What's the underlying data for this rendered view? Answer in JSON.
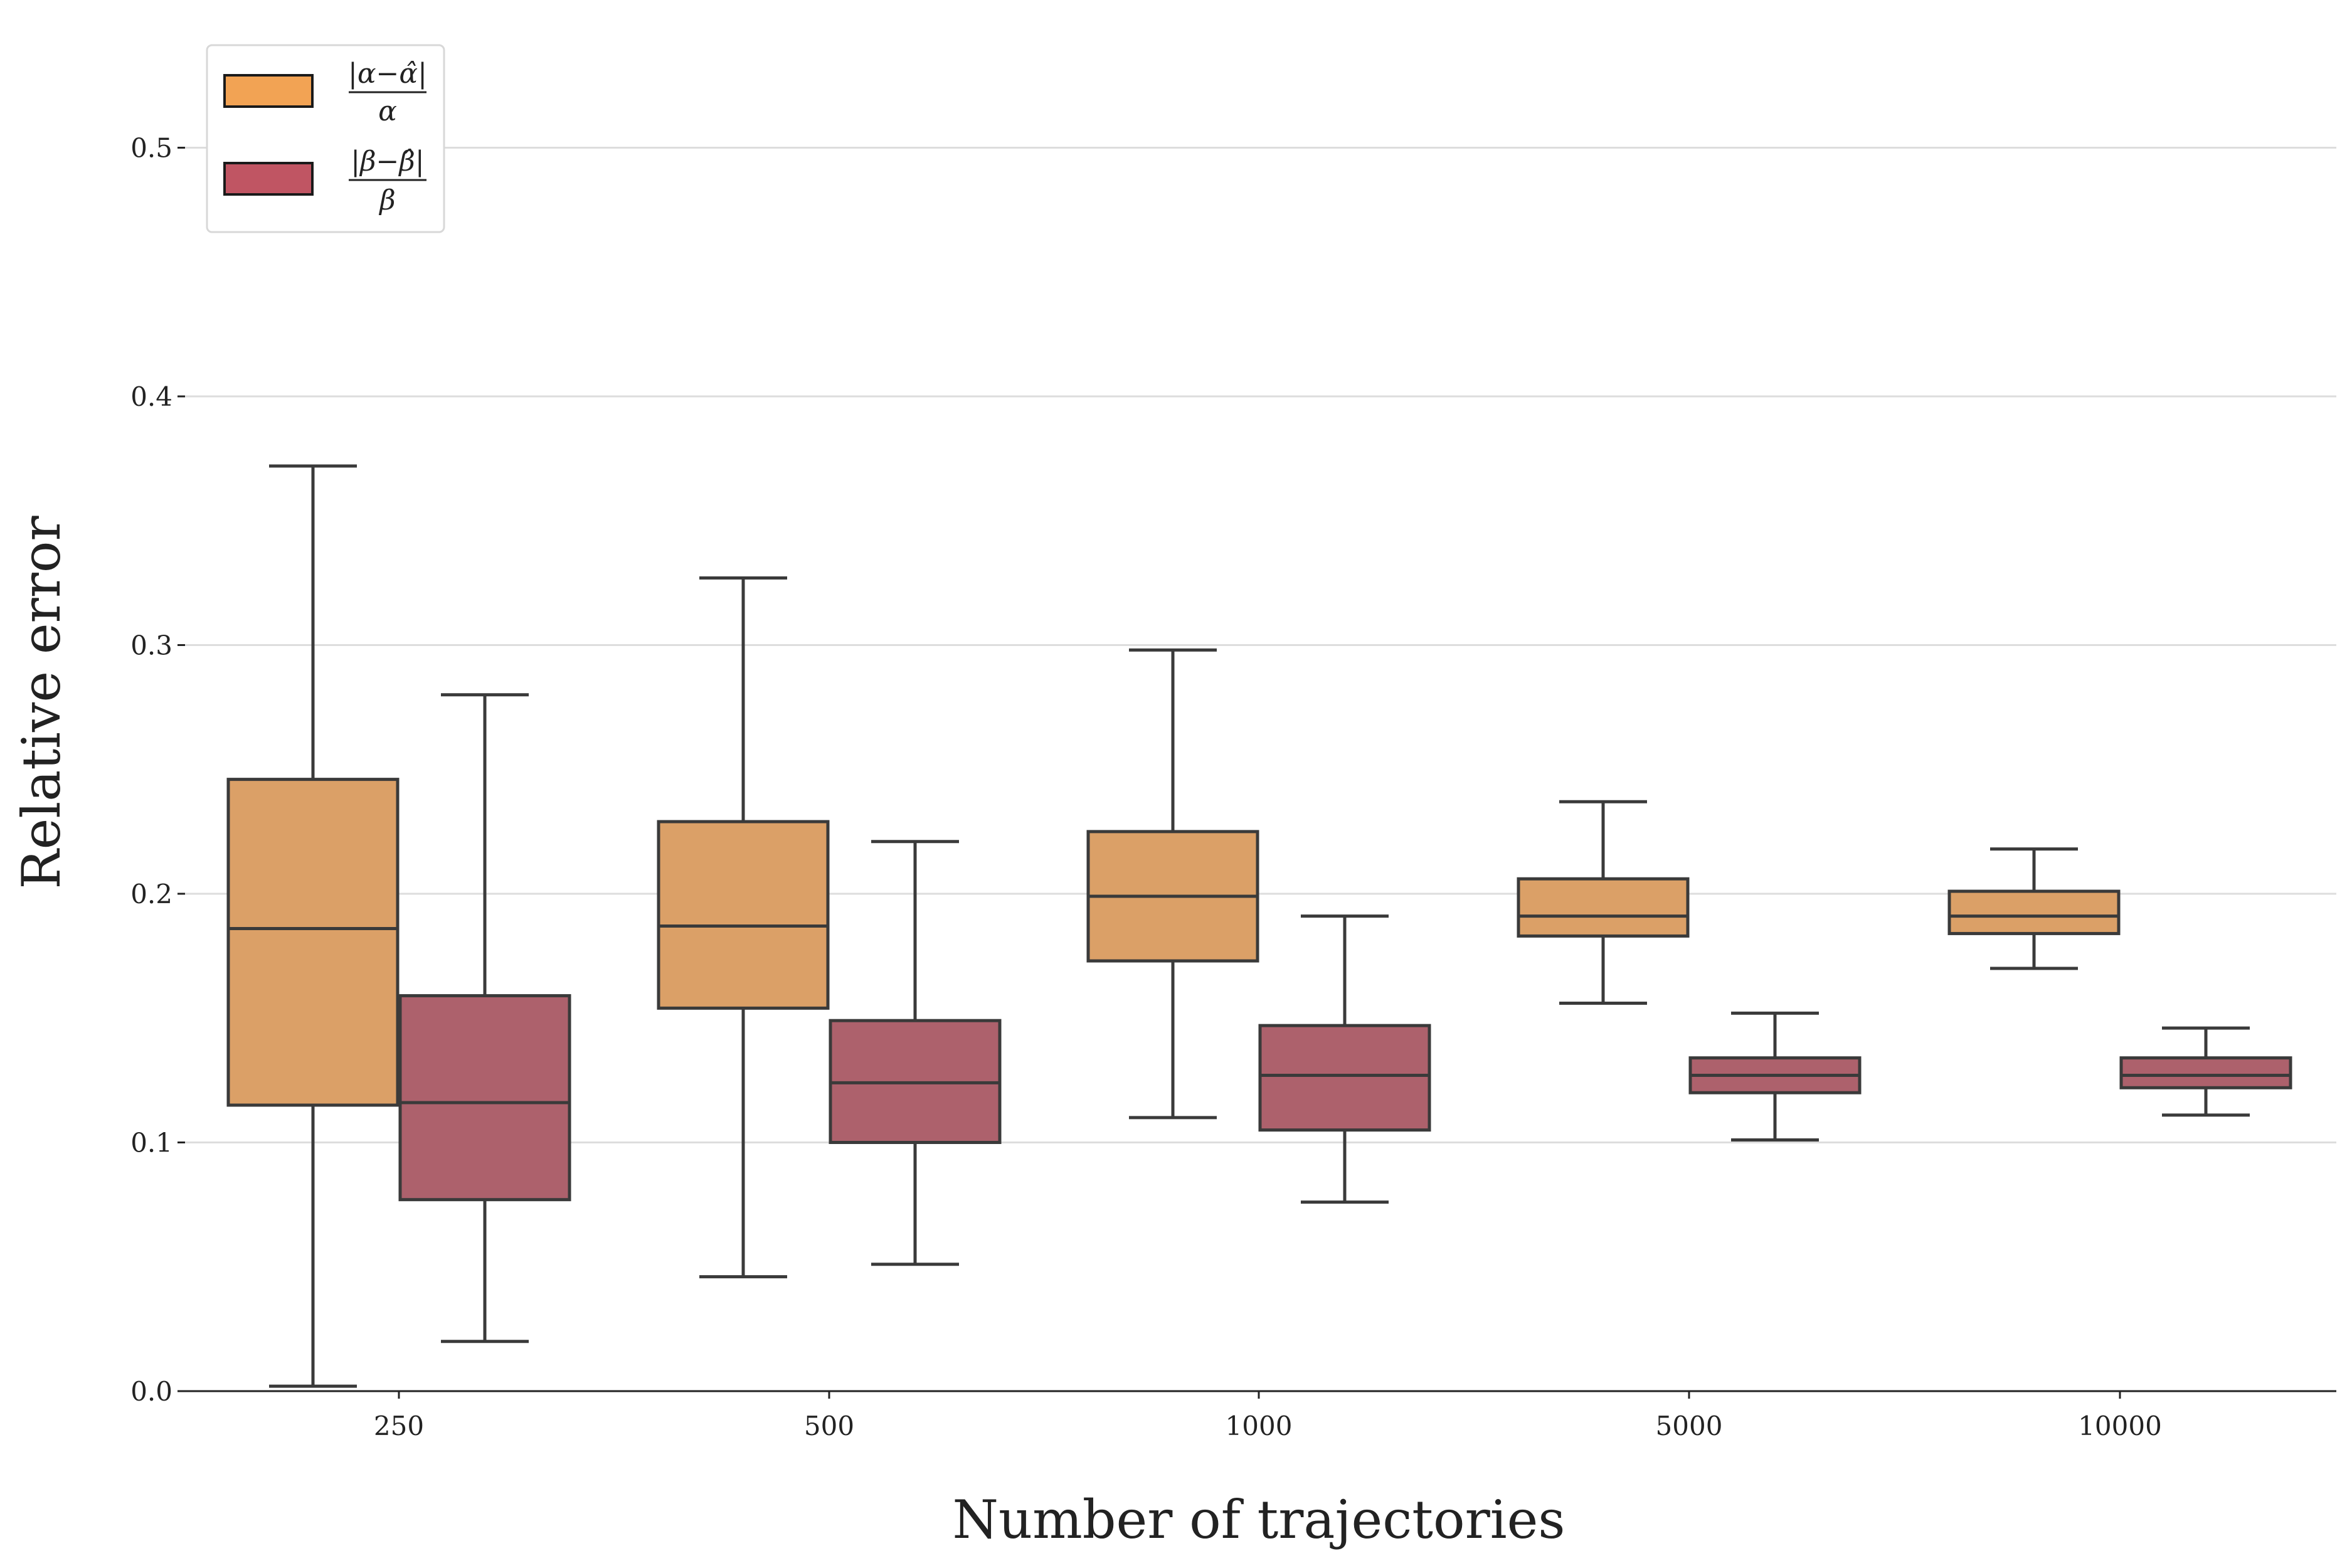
{
  "chart_data": {
    "type": "box",
    "xlabel": "Number of trajectories",
    "ylabel": "Relative error",
    "categories": [
      "250",
      "500",
      "1000",
      "5000",
      "10000"
    ],
    "ylim": [
      0,
      0.55
    ],
    "yticks": [
      "0.0",
      "0.1",
      "0.2",
      "0.3",
      "0.4",
      "0.5"
    ],
    "grid": "horizontal",
    "legend_placement": "top-left",
    "series": [
      {
        "legend_num": "|α−α̂|",
        "legend_den": "α",
        "color": "#dba067",
        "legend_color": "#f2a354",
        "boxes": [
          {
            "min": 0.002,
            "q1": 0.115,
            "median": 0.186,
            "q3": 0.246,
            "max": 0.372
          },
          {
            "min": 0.046,
            "q1": 0.154,
            "median": 0.187,
            "q3": 0.229,
            "max": 0.327
          },
          {
            "min": 0.11,
            "q1": 0.173,
            "median": 0.199,
            "q3": 0.225,
            "max": 0.298
          },
          {
            "min": 0.156,
            "q1": 0.183,
            "median": 0.191,
            "q3": 0.206,
            "max": 0.237
          },
          {
            "min": 0.17,
            "q1": 0.184,
            "median": 0.191,
            "q3": 0.201,
            "max": 0.218
          }
        ]
      },
      {
        "legend_num": "|β−β̂|",
        "legend_den": "β",
        "color": "#ad616c",
        "legend_color": "#c05563",
        "boxes": [
          {
            "min": 0.02,
            "q1": 0.077,
            "median": 0.116,
            "q3": 0.159,
            "max": 0.28
          },
          {
            "min": 0.051,
            "q1": 0.1,
            "median": 0.124,
            "q3": 0.149,
            "max": 0.221
          },
          {
            "min": 0.076,
            "q1": 0.105,
            "median": 0.127,
            "q3": 0.147,
            "max": 0.191
          },
          {
            "min": 0.101,
            "q1": 0.12,
            "median": 0.127,
            "q3": 0.134,
            "max": 0.152
          },
          {
            "min": 0.111,
            "q1": 0.122,
            "median": 0.127,
            "q3": 0.134,
            "max": 0.146
          }
        ]
      }
    ]
  },
  "colors": {
    "grid": "#dddddd",
    "axis": "#222222",
    "box_edge": "#3a3a3a"
  }
}
